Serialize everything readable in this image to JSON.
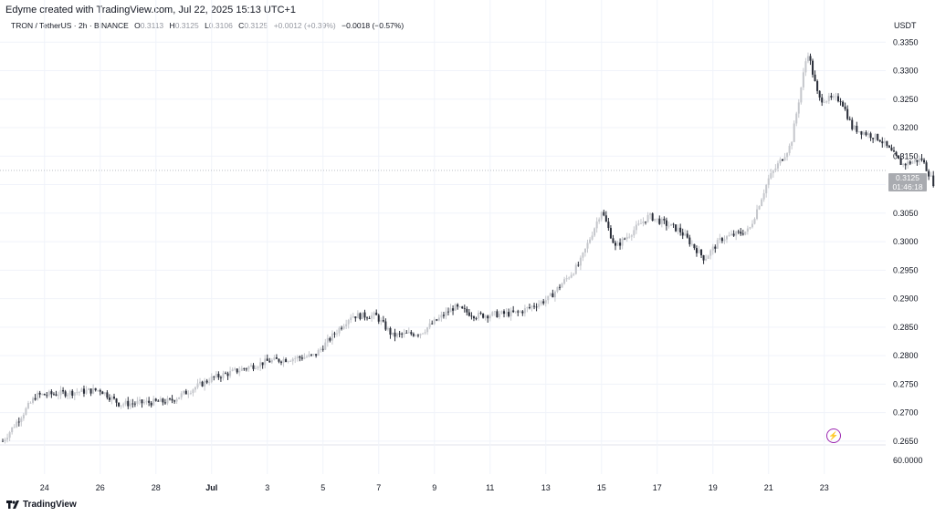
{
  "header": {
    "credit": "Edyme created with TradingView.com, Jul 22, 2025 15:13 UTC+1",
    "symbol": "TRON / TetherUS · 2h · BINANCE",
    "o_label": "O",
    "o_value": "0.3113",
    "h_label": "H",
    "h_value": "0.3125",
    "l_label": "L",
    "l_value": "0.3106",
    "c_label": "C",
    "c_value": "0.3125",
    "change": "+0.0012 (+0.39%)",
    "change2": "−0.0018 (−0.57%)",
    "unit": "USDT"
  },
  "price_tag": {
    "price": "0.3125",
    "countdown": "01:46:18"
  },
  "brand": "TradingView",
  "icons": {
    "alert": "lightning-icon",
    "logo": "tradingview-logo-icon"
  },
  "colors": {
    "up": "#c5c7cc",
    "down": "#2a2e39",
    "grid": "#f0f3fa",
    "text": "#131722"
  },
  "chart_data": {
    "type": "candlestick",
    "y_ticks": [
      "0.3350",
      "0.3300",
      "0.3250",
      "0.3200",
      "0.3150",
      "0.3100",
      "0.3050",
      "0.3000",
      "0.2950",
      "0.2900",
      "0.2850",
      "0.2800",
      "0.2750",
      "0.2700",
      "0.2650"
    ],
    "ylim": [
      0.2645,
      0.336
    ],
    "volume_tick": "60.0000",
    "x_ticks": [
      "24",
      "26",
      "28",
      "Jul",
      "3",
      "5",
      "7",
      "9",
      "11",
      "13",
      "15",
      "17",
      "19",
      "21",
      "23"
    ],
    "anchors": [
      {
        "d": 0,
        "p": 0.265
      },
      {
        "d": 1.2,
        "p": 0.273
      },
      {
        "d": 3.5,
        "p": 0.274
      },
      {
        "d": 4.2,
        "p": 0.2715
      },
      {
        "d": 6.0,
        "p": 0.272
      },
      {
        "d": 7.5,
        "p": 0.276
      },
      {
        "d": 9.5,
        "p": 0.279
      },
      {
        "d": 11.2,
        "p": 0.28
      },
      {
        "d": 12.5,
        "p": 0.287
      },
      {
        "d": 13.4,
        "p": 0.287
      },
      {
        "d": 14.0,
        "p": 0.2835
      },
      {
        "d": 15.0,
        "p": 0.284
      },
      {
        "d": 16.2,
        "p": 0.2885
      },
      {
        "d": 17.0,
        "p": 0.287
      },
      {
        "d": 18.5,
        "p": 0.2875
      },
      {
        "d": 19.6,
        "p": 0.29
      },
      {
        "d": 20.7,
        "p": 0.296
      },
      {
        "d": 21.5,
        "p": 0.3055
      },
      {
        "d": 22.0,
        "p": 0.299
      },
      {
        "d": 23.2,
        "p": 0.3045
      },
      {
        "d": 24.3,
        "p": 0.302
      },
      {
        "d": 25.2,
        "p": 0.297
      },
      {
        "d": 25.8,
        "p": 0.3005
      },
      {
        "d": 26.8,
        "p": 0.302
      },
      {
        "d": 27.5,
        "p": 0.311
      },
      {
        "d": 28.3,
        "p": 0.317
      },
      {
        "d": 28.9,
        "p": 0.3335
      },
      {
        "d": 29.3,
        "p": 0.325
      },
      {
        "d": 30.1,
        "p": 0.325
      },
      {
        "d": 30.5,
        "p": 0.32
      },
      {
        "d": 31.5,
        "p": 0.318
      },
      {
        "d": 32.3,
        "p": 0.3135
      },
      {
        "d": 33.0,
        "p": 0.3145
      },
      {
        "d": 33.5,
        "p": 0.3095
      },
      {
        "d": 34.0,
        "p": 0.3125
      }
    ]
  }
}
